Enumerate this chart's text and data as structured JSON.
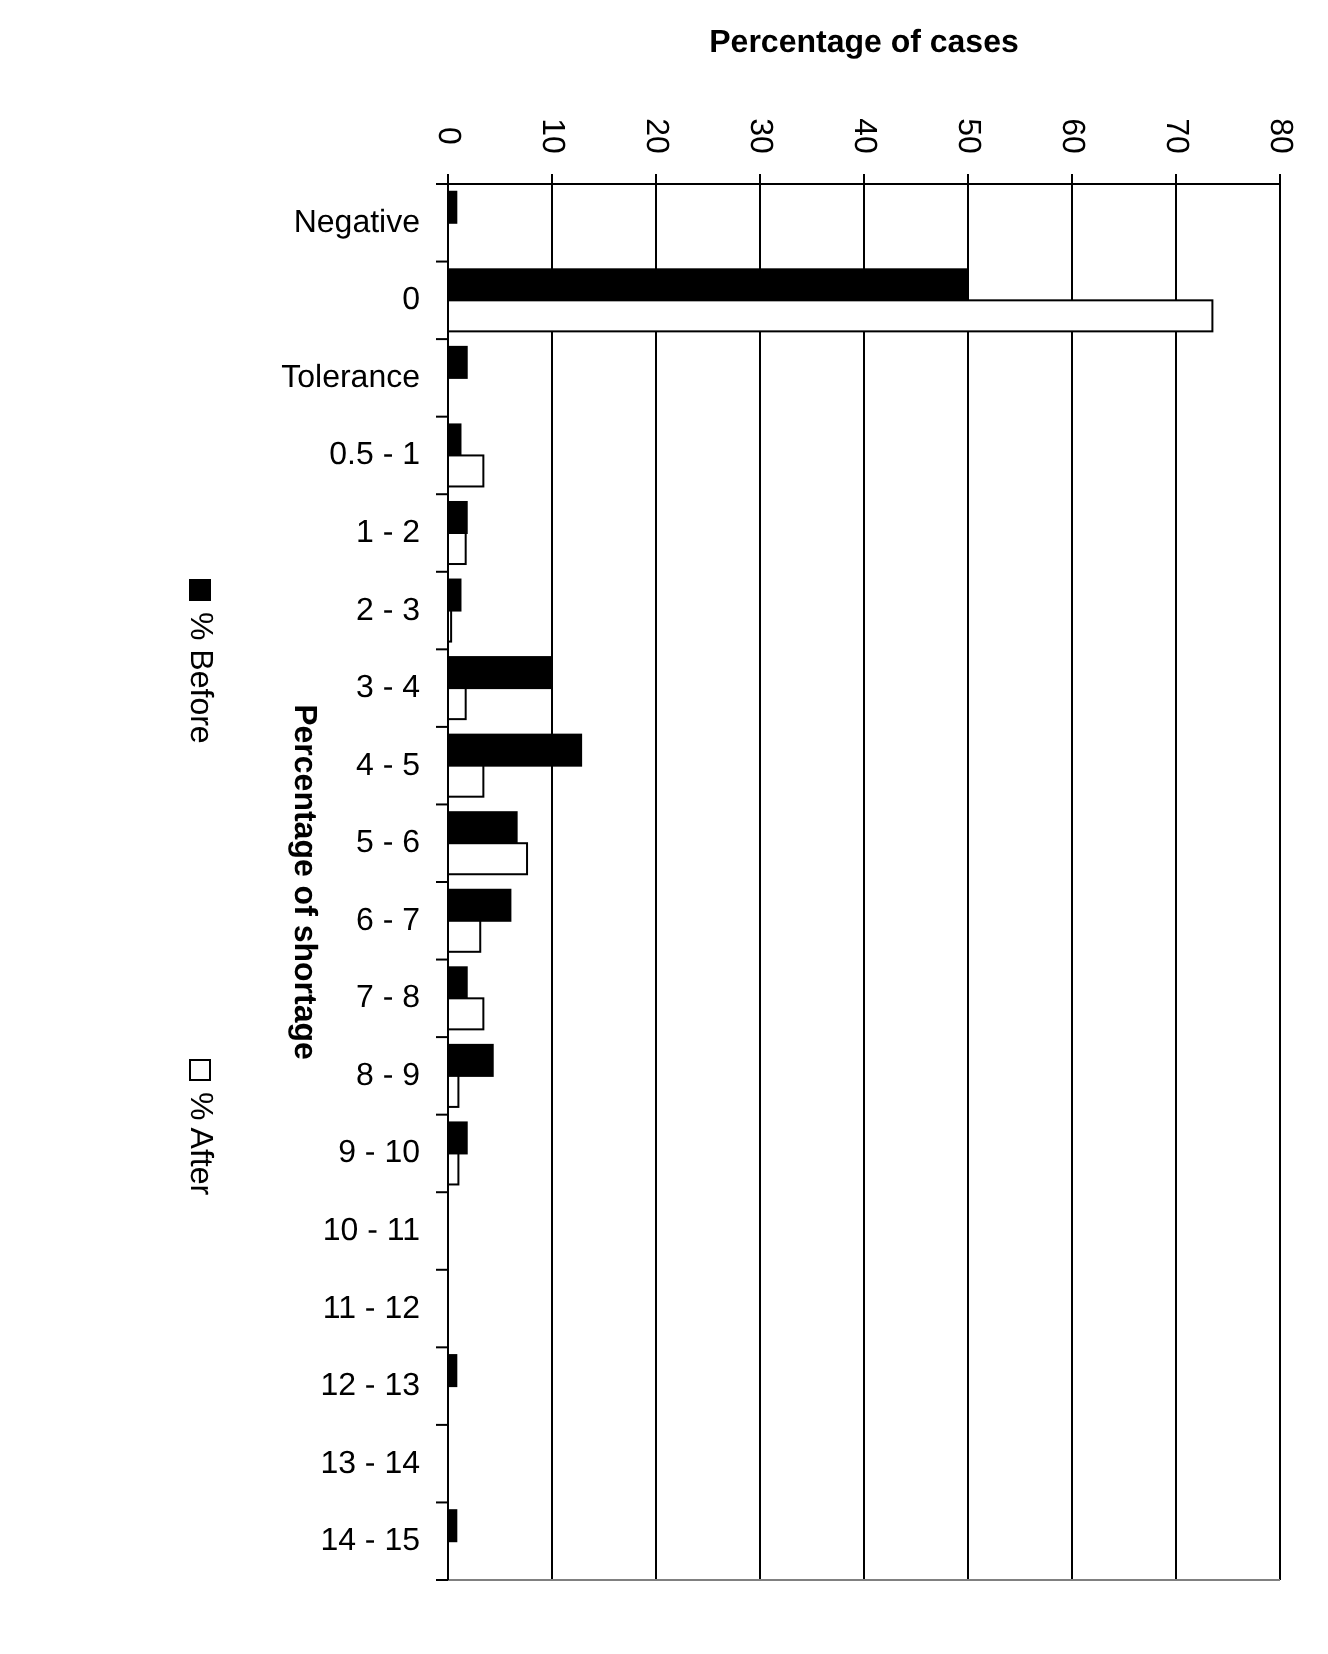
{
  "chart_data": {
    "type": "bar",
    "orientation": "horizontal",
    "xlabel": "Percentage of cases",
    "ylabel": "Percentage of shortage",
    "categories": [
      "Negative",
      "0",
      "Tolerance",
      "0.5 - 1",
      "1 - 2",
      "2 - 3",
      "3 - 4",
      "4 - 5",
      "5 - 6",
      "6 - 7",
      "7 - 8",
      "8 - 9",
      "9 - 10",
      "10 - 11",
      "11 - 12",
      "12 - 13",
      "13 - 14",
      "14 - 15"
    ],
    "series": [
      {
        "name": "% Before",
        "color": "#000000",
        "values": [
          0.8,
          50,
          1.8,
          1.2,
          1.8,
          1.2,
          9.9,
          12.8,
          6.6,
          6.0,
          1.8,
          4.3,
          1.8,
          0,
          0,
          0.8,
          0,
          0.8
        ]
      },
      {
        "name": "% After",
        "color": "#ffffff",
        "values": [
          0,
          73.5,
          0,
          3.4,
          1.7,
          0.3,
          1.7,
          3.4,
          7.6,
          3.1,
          3.4,
          1.0,
          1.0,
          0,
          0,
          0,
          0,
          0
        ]
      }
    ],
    "xlim": [
      0,
      80
    ],
    "xticks": [
      0,
      10,
      20,
      30,
      40,
      50,
      60,
      70,
      80
    ],
    "grid": "x",
    "legend": "left"
  }
}
